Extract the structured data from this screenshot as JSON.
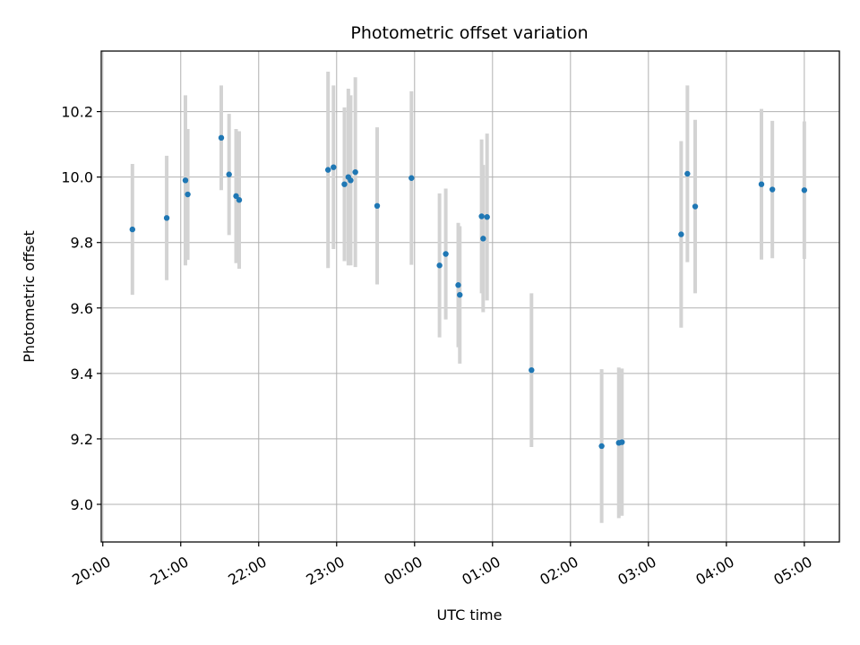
{
  "chart_data": {
    "type": "scatter",
    "title": "Photometric offset variation",
    "xlabel": "UTC time",
    "ylabel": "Photometric offset",
    "x_unit": "hour",
    "xlim": [
      -0.02,
      9.45
    ],
    "ylim": [
      8.885,
      10.385
    ],
    "grid": true,
    "legend": "none",
    "xticks": [
      {
        "value": 0,
        "label": "20:00"
      },
      {
        "value": 1,
        "label": "21:00"
      },
      {
        "value": 2,
        "label": "22:00"
      },
      {
        "value": 3,
        "label": "23:00"
      },
      {
        "value": 4,
        "label": "00:00"
      },
      {
        "value": 5,
        "label": "01:00"
      },
      {
        "value": 6,
        "label": "02:00"
      },
      {
        "value": 7,
        "label": "03:00"
      },
      {
        "value": 8,
        "label": "04:00"
      },
      {
        "value": 9,
        "label": "05:00"
      }
    ],
    "yticks": [
      {
        "value": 9.0,
        "label": "9.0"
      },
      {
        "value": 9.2,
        "label": "9.2"
      },
      {
        "value": 9.4,
        "label": "9.4"
      },
      {
        "value": 9.6,
        "label": "9.6"
      },
      {
        "value": 9.8,
        "label": "9.8"
      },
      {
        "value": 10.0,
        "label": "10.0"
      },
      {
        "value": 10.2,
        "label": "10.2"
      }
    ],
    "colors": {
      "point": "#1f77b4",
      "errorbar": "#d3d3d3",
      "grid": "#b0b0b0"
    },
    "points": [
      {
        "x": 0.38,
        "y": 9.84,
        "err": 0.2
      },
      {
        "x": 0.82,
        "y": 9.875,
        "err": 0.19
      },
      {
        "x": 1.06,
        "y": 9.99,
        "err": 0.26
      },
      {
        "x": 1.09,
        "y": 9.947,
        "err": 0.2
      },
      {
        "x": 1.52,
        "y": 10.12,
        "err": 0.16
      },
      {
        "x": 1.62,
        "y": 10.008,
        "err": 0.185
      },
      {
        "x": 1.71,
        "y": 9.942,
        "err": 0.205
      },
      {
        "x": 1.75,
        "y": 9.93,
        "err": 0.21
      },
      {
        "x": 2.89,
        "y": 10.022,
        "err": 0.3
      },
      {
        "x": 2.96,
        "y": 10.03,
        "err": 0.25
      },
      {
        "x": 3.1,
        "y": 9.978,
        "err": 0.235
      },
      {
        "x": 3.15,
        "y": 10.0,
        "err": 0.27
      },
      {
        "x": 3.18,
        "y": 9.99,
        "err": 0.26
      },
      {
        "x": 3.24,
        "y": 10.015,
        "err": 0.29
      },
      {
        "x": 3.52,
        "y": 9.912,
        "err": 0.24
      },
      {
        "x": 3.96,
        "y": 9.997,
        "err": 0.265
      },
      {
        "x": 4.32,
        "y": 9.73,
        "err": 0.22
      },
      {
        "x": 4.4,
        "y": 9.765,
        "err": 0.2
      },
      {
        "x": 4.56,
        "y": 9.67,
        "err": 0.19
      },
      {
        "x": 4.58,
        "y": 9.64,
        "err": 0.21
      },
      {
        "x": 4.86,
        "y": 9.88,
        "err": 0.235
      },
      {
        "x": 4.88,
        "y": 9.812,
        "err": 0.225
      },
      {
        "x": 4.93,
        "y": 9.878,
        "err": 0.255
      },
      {
        "x": 5.5,
        "y": 9.41,
        "err": 0.235
      },
      {
        "x": 6.4,
        "y": 9.178,
        "err": 0.235
      },
      {
        "x": 6.62,
        "y": 9.188,
        "err": 0.23
      },
      {
        "x": 6.66,
        "y": 9.19,
        "err": 0.225
      },
      {
        "x": 7.42,
        "y": 9.825,
        "err": 0.285
      },
      {
        "x": 7.5,
        "y": 10.01,
        "err": 0.27
      },
      {
        "x": 7.6,
        "y": 9.91,
        "err": 0.265
      },
      {
        "x": 8.45,
        "y": 9.978,
        "err": 0.23
      },
      {
        "x": 8.59,
        "y": 9.962,
        "err": 0.21
      },
      {
        "x": 9.0,
        "y": 9.96,
        "err": 0.21
      }
    ]
  }
}
